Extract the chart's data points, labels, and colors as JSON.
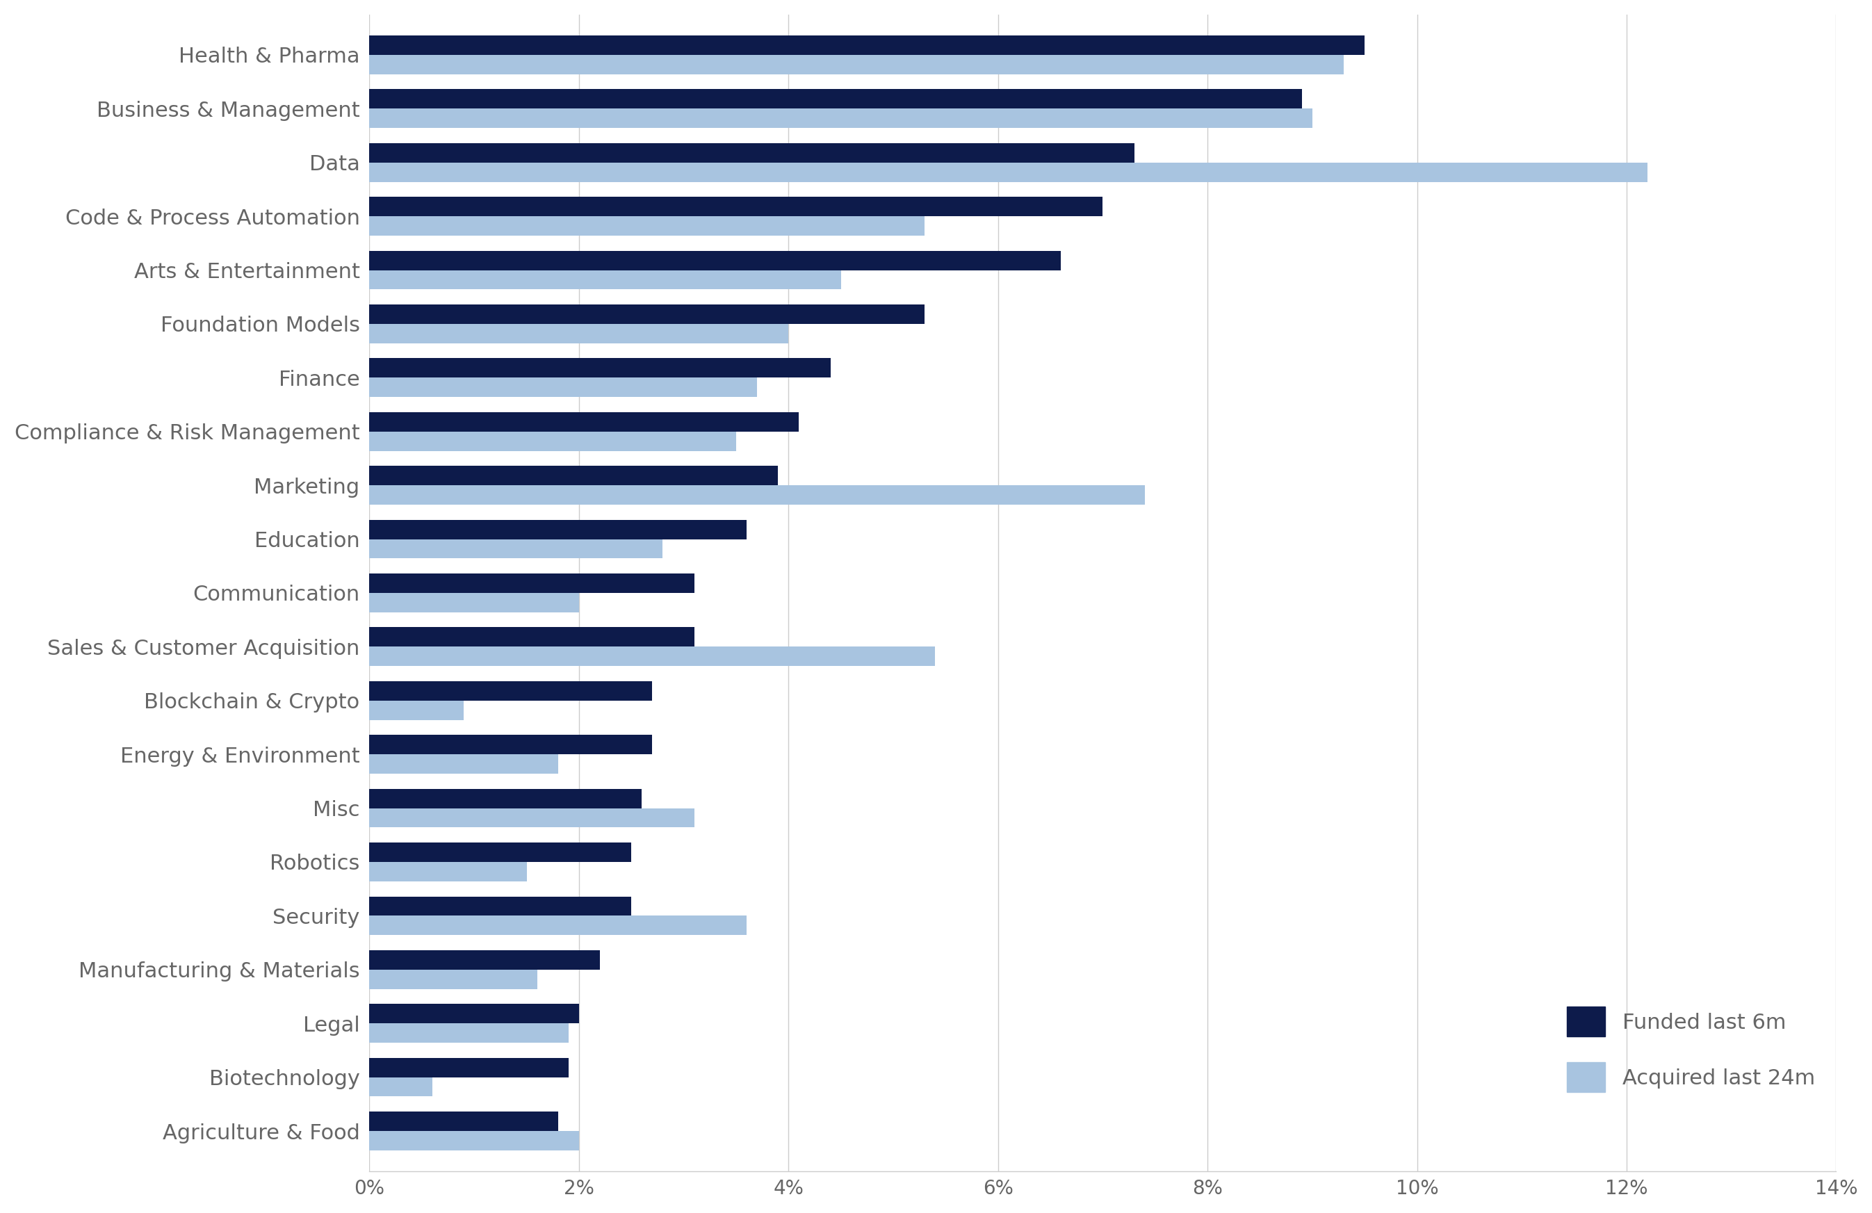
{
  "categories": [
    "Health & Pharma",
    "Business & Management",
    "Data",
    "Code & Process Automation",
    "Arts & Entertainment",
    "Foundation Models",
    "Finance",
    "Compliance & Risk Management",
    "Marketing",
    "Education",
    "Communication",
    "Sales & Customer Acquisition",
    "Blockchain & Crypto",
    "Energy & Environment",
    "Misc",
    "Robotics",
    "Security",
    "Manufacturing & Materials",
    "Legal",
    "Biotechnology",
    "Agriculture & Food"
  ],
  "funded_last_6m": [
    9.5,
    8.9,
    7.3,
    7.0,
    6.6,
    5.3,
    4.4,
    4.1,
    3.9,
    3.6,
    3.1,
    3.1,
    2.7,
    2.7,
    2.6,
    2.5,
    2.5,
    2.2,
    2.0,
    1.9,
    1.8
  ],
  "acquired_last_24m": [
    9.3,
    9.0,
    12.2,
    5.3,
    4.5,
    4.0,
    3.7,
    3.5,
    7.4,
    2.8,
    2.0,
    5.4,
    0.9,
    1.8,
    3.1,
    1.5,
    3.6,
    1.6,
    1.9,
    0.6,
    2.0
  ],
  "color_funded": "#0d1b4b",
  "color_acquired": "#a8c4e0",
  "background_color": "#ffffff",
  "bar_height": 0.36,
  "xlim": [
    0,
    14
  ],
  "xticks": [
    0,
    2,
    4,
    6,
    8,
    10,
    12,
    14
  ],
  "xticklabels": [
    "0%",
    "2%",
    "4%",
    "6%",
    "8%",
    "10%",
    "12%",
    "14%"
  ],
  "legend_labels": [
    "Funded last 6m",
    "Acquired last 24m"
  ],
  "grid_color": "#cccccc",
  "label_fontsize": 22,
  "tick_fontsize": 20,
  "legend_fontsize": 22
}
